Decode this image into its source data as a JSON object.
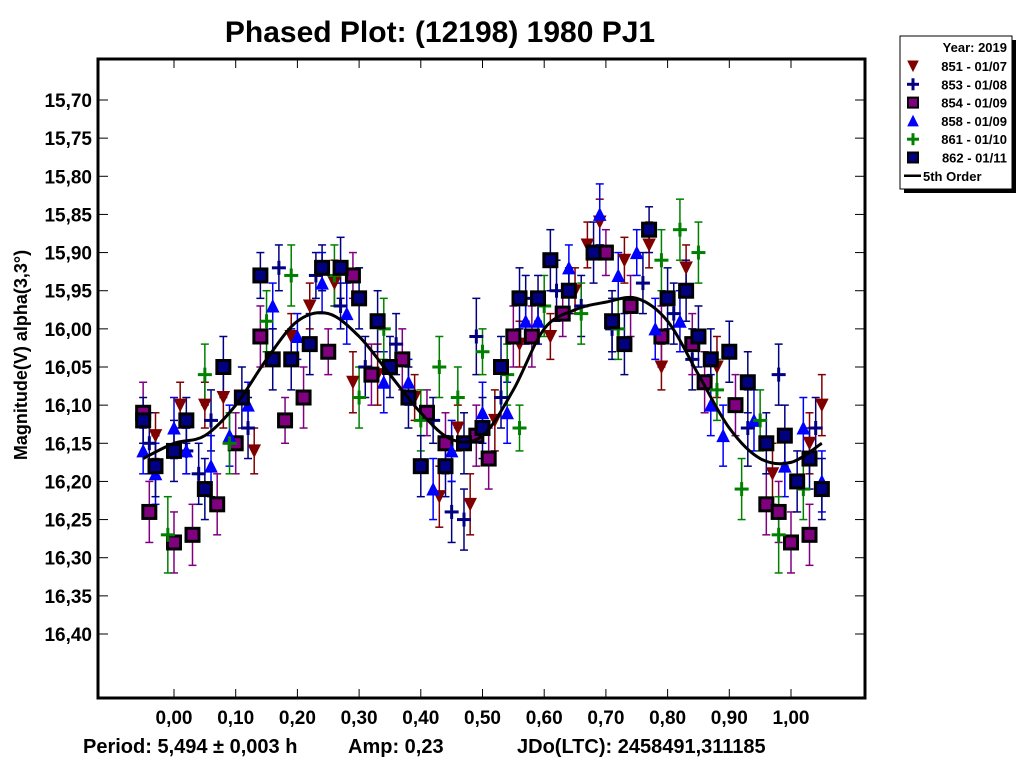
{
  "chart_data": {
    "type": "scatter",
    "title": "Phased Plot: (12198) 1980 PJ1",
    "xlabel": "",
    "ylabel": "Magnitude(V) alpha(3,3°)",
    "xlim": [
      -0.125,
      1.12
    ],
    "ylim": [
      15.645,
      16.485
    ],
    "y_inverted": true,
    "x_ticks": [
      0.0,
      0.1,
      0.2,
      0.3,
      0.4,
      0.5,
      0.6,
      0.7,
      0.8,
      0.9,
      1.0
    ],
    "x_tick_labels": [
      "0,00",
      "0,10",
      "0,20",
      "0,30",
      "0,40",
      "0,50",
      "0,60",
      "0,70",
      "0,80",
      "0,90",
      "1,00"
    ],
    "y_ticks": [
      15.7,
      15.75,
      15.8,
      15.85,
      15.9,
      15.95,
      16.0,
      16.05,
      16.1,
      16.15,
      16.2,
      16.25,
      16.3,
      16.35,
      16.4
    ],
    "y_tick_labels": [
      "15,70",
      "15,75",
      "15,80",
      "15,85",
      "15,90",
      "15,95",
      "16,00",
      "16,05",
      "16,10",
      "16,15",
      "16,20",
      "16,25",
      "16,30",
      "16,35",
      "16,40"
    ],
    "grid": false,
    "legend_placement": "outside-top-right",
    "legend": {
      "header": "Year: 2019",
      "entries": [
        {
          "label": "851 - 01/07",
          "marker": "triangle-down",
          "color": "#800000",
          "fill": "#800000"
        },
        {
          "label": "853 - 01/08",
          "marker": "plus",
          "color": "#000080",
          "fill": "#000080"
        },
        {
          "label": "854 - 01/09",
          "marker": "square",
          "color": "#000000",
          "fill": "#800080"
        },
        {
          "label": "858 - 01/09",
          "marker": "triangle-up",
          "color": "#0000ff",
          "fill": "#0000ff"
        },
        {
          "label": "861 - 01/10",
          "marker": "plus",
          "color": "#008000",
          "fill": "#008000"
        },
        {
          "label": "862 - 01/11",
          "marker": "square",
          "color": "#000000",
          "fill": "#000080"
        },
        {
          "label": "5th Order",
          "marker": "line",
          "color": "#000000",
          "fill": "#000000"
        }
      ]
    },
    "fit_curve": {
      "name": "5th Order",
      "color": "#000000",
      "phase": [
        -0.05,
        0.0,
        0.05,
        0.1,
        0.15,
        0.2,
        0.25,
        0.3,
        0.35,
        0.4,
        0.45,
        0.5,
        0.55,
        0.6,
        0.65,
        0.7,
        0.75,
        0.8,
        0.85,
        0.9,
        0.95,
        1.0,
        1.05
      ],
      "mag": [
        16.17,
        16.15,
        16.14,
        16.1,
        16.04,
        15.99,
        15.98,
        16.01,
        16.06,
        16.11,
        16.145,
        16.14,
        16.08,
        16.0,
        15.975,
        15.965,
        15.96,
        15.99,
        16.06,
        16.13,
        16.17,
        16.175,
        16.15
      ]
    },
    "error_bar_color_by_series": true,
    "series": [
      {
        "name": "851 - 01/07",
        "color": "#800000",
        "marker": "triangle-down",
        "points": [
          [
            -0.03,
            16.14,
            0.03
          ],
          [
            0.01,
            16.1,
            0.03
          ],
          [
            0.05,
            16.1,
            0.03
          ],
          [
            0.08,
            16.09,
            0.04
          ],
          [
            0.13,
            16.16,
            0.03
          ],
          [
            0.19,
            16.01,
            0.03
          ],
          [
            0.22,
            15.97,
            0.03
          ],
          [
            0.26,
            15.94,
            0.03
          ],
          [
            0.29,
            16.07,
            0.04
          ],
          [
            0.33,
            16.06,
            0.04
          ],
          [
            0.39,
            16.09,
            0.03
          ],
          [
            0.43,
            16.22,
            0.04
          ],
          [
            0.46,
            16.13,
            0.03
          ],
          [
            0.48,
            16.23,
            0.04
          ],
          [
            0.52,
            16.12,
            0.04
          ],
          [
            0.56,
            16.02,
            0.03
          ],
          [
            0.61,
            16.01,
            0.03
          ],
          [
            0.65,
            15.95,
            0.03
          ],
          [
            0.67,
            15.89,
            0.03
          ],
          [
            0.69,
            15.86,
            0.03
          ],
          [
            0.73,
            15.91,
            0.03
          ],
          [
            0.77,
            15.89,
            0.03
          ],
          [
            0.79,
            16.05,
            0.03
          ],
          [
            0.83,
            15.92,
            0.03
          ],
          [
            0.88,
            16.05,
            0.04
          ],
          [
            0.97,
            16.19,
            0.04
          ],
          [
            1.03,
            16.15,
            0.04
          ],
          [
            1.05,
            16.1,
            0.04
          ]
        ]
      },
      {
        "name": "853 - 01/08",
        "color": "#000080",
        "marker": "plus",
        "points": [
          [
            -0.04,
            16.15,
            0.04
          ],
          [
            0.02,
            16.16,
            0.03
          ],
          [
            0.04,
            16.19,
            0.04
          ],
          [
            0.06,
            16.12,
            0.04
          ],
          [
            0.12,
            16.13,
            0.04
          ],
          [
            0.17,
            15.92,
            0.03
          ],
          [
            0.23,
            15.93,
            0.03
          ],
          [
            0.27,
            15.97,
            0.03
          ],
          [
            0.31,
            16.05,
            0.04
          ],
          [
            0.36,
            16.02,
            0.04
          ],
          [
            0.42,
            16.12,
            0.03
          ],
          [
            0.45,
            16.24,
            0.04
          ],
          [
            0.47,
            16.25,
            0.04
          ],
          [
            0.49,
            16.01,
            0.05
          ],
          [
            0.53,
            16.09,
            0.04
          ],
          [
            0.57,
            15.96,
            0.03
          ],
          [
            0.62,
            15.95,
            0.04
          ],
          [
            0.66,
            15.97,
            0.04
          ],
          [
            0.71,
            16.0,
            0.04
          ],
          [
            0.76,
            15.94,
            0.04
          ],
          [
            0.81,
            15.98,
            0.04
          ],
          [
            0.84,
            16.04,
            0.04
          ],
          [
            0.93,
            16.13,
            0.05
          ],
          [
            0.98,
            16.06,
            0.04
          ],
          [
            1.04,
            16.13,
            0.04
          ]
        ]
      },
      {
        "name": "854 - 01/09",
        "color": "#800080",
        "marker": "square",
        "points": [
          [
            -0.05,
            16.11,
            0.04
          ],
          [
            -0.04,
            16.24,
            0.04
          ],
          [
            0.0,
            16.28,
            0.04
          ],
          [
            0.03,
            16.27,
            0.04
          ],
          [
            0.07,
            16.23,
            0.04
          ],
          [
            0.1,
            16.15,
            0.04
          ],
          [
            0.14,
            16.01,
            0.04
          ],
          [
            0.18,
            16.12,
            0.03
          ],
          [
            0.21,
            16.09,
            0.04
          ],
          [
            0.25,
            16.03,
            0.03
          ],
          [
            0.29,
            15.93,
            0.03
          ],
          [
            0.32,
            16.06,
            0.04
          ],
          [
            0.37,
            16.04,
            0.04
          ],
          [
            0.41,
            16.11,
            0.03
          ],
          [
            0.44,
            16.15,
            0.04
          ],
          [
            0.49,
            16.14,
            0.04
          ],
          [
            0.51,
            16.17,
            0.04
          ],
          [
            0.55,
            16.01,
            0.04
          ],
          [
            0.58,
            16.01,
            0.04
          ],
          [
            0.63,
            15.98,
            0.03
          ],
          [
            0.7,
            15.9,
            0.03
          ],
          [
            0.74,
            15.97,
            0.04
          ],
          [
            0.79,
            16.01,
            0.04
          ],
          [
            0.84,
            16.02,
            0.04
          ],
          [
            0.86,
            16.07,
            0.04
          ],
          [
            0.91,
            16.1,
            0.04
          ],
          [
            0.96,
            16.23,
            0.04
          ],
          [
            0.98,
            16.24,
            0.04
          ],
          [
            1.0,
            16.28,
            0.04
          ],
          [
            1.03,
            16.27,
            0.04
          ]
        ]
      },
      {
        "name": "858 - 01/09",
        "color": "#0000ff",
        "marker": "triangle-up",
        "points": [
          [
            -0.05,
            16.16,
            0.03
          ],
          [
            -0.03,
            16.19,
            0.04
          ],
          [
            0.0,
            16.13,
            0.04
          ],
          [
            0.02,
            16.16,
            0.03
          ],
          [
            0.06,
            16.18,
            0.04
          ],
          [
            0.09,
            16.14,
            0.04
          ],
          [
            0.12,
            16.1,
            0.03
          ],
          [
            0.16,
            15.97,
            0.03
          ],
          [
            0.2,
            16.01,
            0.03
          ],
          [
            0.24,
            15.94,
            0.04
          ],
          [
            0.28,
            15.98,
            0.04
          ],
          [
            0.34,
            16.07,
            0.04
          ],
          [
            0.38,
            16.07,
            0.03
          ],
          [
            0.42,
            16.21,
            0.04
          ],
          [
            0.45,
            16.16,
            0.04
          ],
          [
            0.5,
            16.11,
            0.04
          ],
          [
            0.54,
            16.11,
            0.04
          ],
          [
            0.57,
            15.99,
            0.03
          ],
          [
            0.59,
            15.99,
            0.03
          ],
          [
            0.64,
            15.92,
            0.03
          ],
          [
            0.69,
            15.85,
            0.04
          ],
          [
            0.72,
            15.93,
            0.03
          ],
          [
            0.75,
            15.9,
            0.03
          ],
          [
            0.78,
            16.0,
            0.04
          ],
          [
            0.82,
            15.99,
            0.04
          ],
          [
            0.87,
            16.1,
            0.04
          ],
          [
            0.89,
            16.14,
            0.04
          ],
          [
            0.94,
            16.12,
            0.04
          ],
          [
            0.99,
            16.18,
            0.04
          ],
          [
            1.02,
            16.13,
            0.04
          ],
          [
            1.05,
            16.2,
            0.04
          ]
        ]
      },
      {
        "name": "861 - 01/10",
        "color": "#008000",
        "marker": "plus",
        "points": [
          [
            -0.01,
            16.27,
            0.05
          ],
          [
            0.05,
            16.06,
            0.04
          ],
          [
            0.09,
            16.15,
            0.04
          ],
          [
            0.15,
            15.99,
            0.04
          ],
          [
            0.19,
            15.93,
            0.04
          ],
          [
            0.26,
            15.93,
            0.04
          ],
          [
            0.3,
            16.09,
            0.04
          ],
          [
            0.34,
            16.0,
            0.04
          ],
          [
            0.4,
            16.12,
            0.04
          ],
          [
            0.43,
            16.05,
            0.04
          ],
          [
            0.46,
            16.09,
            0.04
          ],
          [
            0.5,
            16.03,
            0.03
          ],
          [
            0.54,
            16.06,
            0.04
          ],
          [
            0.56,
            16.13,
            0.03
          ],
          [
            0.6,
            15.97,
            0.04
          ],
          [
            0.66,
            15.98,
            0.04
          ],
          [
            0.72,
            16.0,
            0.04
          ],
          [
            0.79,
            15.91,
            0.04
          ],
          [
            0.82,
            15.87,
            0.04
          ],
          [
            0.85,
            15.9,
            0.04
          ],
          [
            0.88,
            16.08,
            0.04
          ],
          [
            0.92,
            16.21,
            0.04
          ],
          [
            0.95,
            16.12,
            0.04
          ],
          [
            0.98,
            16.27,
            0.05
          ],
          [
            1.02,
            16.21,
            0.04
          ]
        ]
      },
      {
        "name": "862 - 01/11",
        "color": "#000080",
        "marker": "square",
        "points": [
          [
            -0.05,
            16.12,
            0.03
          ],
          [
            -0.03,
            16.18,
            0.04
          ],
          [
            0.0,
            16.16,
            0.04
          ],
          [
            0.02,
            16.12,
            0.03
          ],
          [
            0.05,
            16.21,
            0.04
          ],
          [
            0.08,
            16.05,
            0.04
          ],
          [
            0.11,
            16.09,
            0.04
          ],
          [
            0.14,
            15.93,
            0.03
          ],
          [
            0.16,
            16.04,
            0.04
          ],
          [
            0.19,
            16.04,
            0.04
          ],
          [
            0.22,
            16.02,
            0.04
          ],
          [
            0.24,
            15.92,
            0.03
          ],
          [
            0.27,
            15.92,
            0.04
          ],
          [
            0.3,
            15.96,
            0.04
          ],
          [
            0.33,
            15.99,
            0.04
          ],
          [
            0.35,
            16.05,
            0.04
          ],
          [
            0.38,
            16.09,
            0.04
          ],
          [
            0.4,
            16.18,
            0.04
          ],
          [
            0.44,
            16.18,
            0.04
          ],
          [
            0.47,
            16.15,
            0.04
          ],
          [
            0.5,
            16.13,
            0.04
          ],
          [
            0.53,
            16.05,
            0.04
          ],
          [
            0.56,
            15.96,
            0.04
          ],
          [
            0.59,
            15.96,
            0.03
          ],
          [
            0.61,
            15.91,
            0.04
          ],
          [
            0.64,
            15.95,
            0.03
          ],
          [
            0.68,
            15.9,
            0.04
          ],
          [
            0.71,
            15.99,
            0.04
          ],
          [
            0.73,
            16.02,
            0.04
          ],
          [
            0.77,
            15.87,
            0.03
          ],
          [
            0.8,
            15.96,
            0.04
          ],
          [
            0.83,
            15.95,
            0.04
          ],
          [
            0.85,
            16.01,
            0.04
          ],
          [
            0.87,
            16.04,
            0.04
          ],
          [
            0.9,
            16.03,
            0.04
          ],
          [
            0.93,
            16.07,
            0.04
          ],
          [
            0.96,
            16.15,
            0.04
          ],
          [
            0.99,
            16.14,
            0.04
          ],
          [
            1.01,
            16.2,
            0.04
          ],
          [
            1.03,
            16.17,
            0.04
          ],
          [
            1.05,
            16.21,
            0.04
          ]
        ]
      }
    ],
    "footer": {
      "period": "Period: 5,494 ± 0,003 h",
      "amp": "Amp: 0,23",
      "jdo": "JDo(LTC): 2458491,311185"
    }
  }
}
